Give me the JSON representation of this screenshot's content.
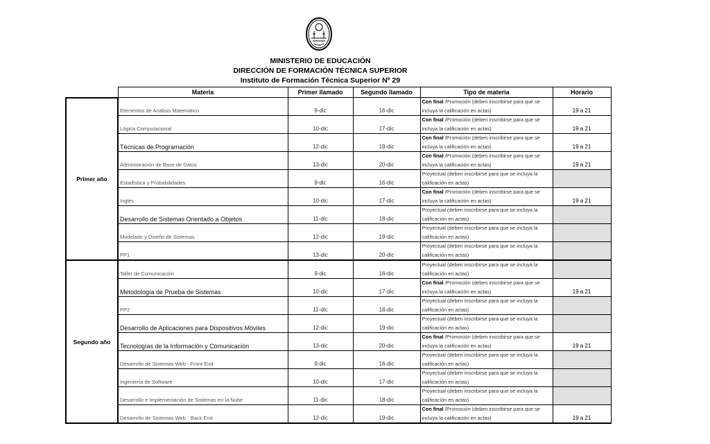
{
  "header": {
    "line1": "MINISTERIO DE EDUCACIÓN",
    "line2": "DIRECCIÓN DE FORMACIÓN TÉCNICA SUPERIOR",
    "line3": "Instituto de Formación Técnica Superior Nº 29"
  },
  "columns": [
    "Materia",
    "Primer llamado",
    "Segundo llamado",
    "Tipo de materia",
    "Horario"
  ],
  "tipos": {
    "final_bold": "Con final",
    "final_rest": " /Promoción (deben inscribirse para que se incluya  la calificación en actas)",
    "proyectual": "Proyectual (deben inscribirse para que se incluya la calificación en actas)"
  },
  "years": [
    {
      "label": "Primer año",
      "rows": [
        {
          "materia": "Elementos de Análisis Matemático",
          "primer": "9-dic",
          "segundo": "16-dic",
          "tipo": "final",
          "horario": "19 a 21",
          "emphasis": false
        },
        {
          "materia": "Lógica Computacional",
          "primer": "10-dic",
          "segundo": "17-dic",
          "tipo": "final",
          "horario": "19 a 21",
          "emphasis": false
        },
        {
          "materia": "Técnicas de Programación",
          "primer": "12-dic",
          "segundo": "19-dic",
          "tipo": "final",
          "horario": "19 a 21",
          "emphasis": true
        },
        {
          "materia": "Administración de Base de Datos",
          "primer": "13-dic",
          "segundo": "20-dic",
          "tipo": "final",
          "horario": "19 a 21",
          "emphasis": false
        },
        {
          "materia": "Estadística y Probabilidades",
          "primer": "9-dic",
          "segundo": "16-dic",
          "tipo": "proyectual",
          "horario": "",
          "emphasis": false
        },
        {
          "materia": "Inglés",
          "primer": "10-dic",
          "segundo": "17-dic",
          "tipo": "final",
          "horario": "19 a 21",
          "emphasis": false
        },
        {
          "materia": "Desarrollo de Sistemas Orientado a Objetos",
          "primer": "11-dic",
          "segundo": "18-dic",
          "tipo": "proyectual",
          "horario": "",
          "emphasis": true
        },
        {
          "materia": "Modelado y Diseño de Sistemas",
          "primer": "12-dic",
          "segundo": "19-dic",
          "tipo": "proyectual",
          "horario": "",
          "emphasis": false
        },
        {
          "materia": "PP1",
          "primer": "13-dic",
          "segundo": "20-dic",
          "tipo": "proyectual",
          "horario": "",
          "emphasis": false
        }
      ]
    },
    {
      "label": "Segundo año",
      "rows": [
        {
          "materia": "Taller de Comunicación",
          "primer": "9-dic",
          "segundo": "16-dic",
          "tipo": "proyectual",
          "horario": "",
          "emphasis": false
        },
        {
          "materia": "Metodología de Prueba de Sistemas",
          "primer": "10-dic",
          "segundo": "17-dic",
          "tipo": "final",
          "horario": "19 a 21",
          "emphasis": true
        },
        {
          "materia": "PP2",
          "primer": "11-dic",
          "segundo": "18-dic",
          "tipo": "proyectual",
          "horario": "",
          "emphasis": false
        },
        {
          "materia": "Desarrollo de Aplicaciones para Dispositivos Móviles",
          "primer": "12-dic",
          "segundo": "19-dic",
          "tipo": "proyectual",
          "horario": "",
          "emphasis": true
        },
        {
          "materia": "Tecnologías de la Información y Comunicación",
          "primer": "13-dic",
          "segundo": "20-dic",
          "tipo": "final",
          "horario": "19 a 21",
          "emphasis": true
        },
        {
          "materia": "Desarrollo de Sistemas Web - Front End",
          "primer": "9-dic",
          "segundo": "16-dic",
          "tipo": "proyectual",
          "horario": "",
          "emphasis": false
        },
        {
          "materia": "Ingeniería de Software",
          "primer": "10-dic",
          "segundo": "17-dic",
          "tipo": "proyectual",
          "horario": "",
          "emphasis": false
        },
        {
          "materia": "Desarrollo e Implementación de Sistemas en la Nube",
          "primer": "11-dic",
          "segundo": "18-dic",
          "tipo": "proyectual",
          "horario": "",
          "emphasis": false
        },
        {
          "materia": "Desarrollo de Sistemas Web - Back End",
          "primer": "12-dic",
          "segundo": "19-dic",
          "tipo": "final",
          "horario": "19 a 21",
          "emphasis": false
        }
      ]
    }
  ],
  "colors": {
    "empty_cell": "#e0e0e0"
  }
}
